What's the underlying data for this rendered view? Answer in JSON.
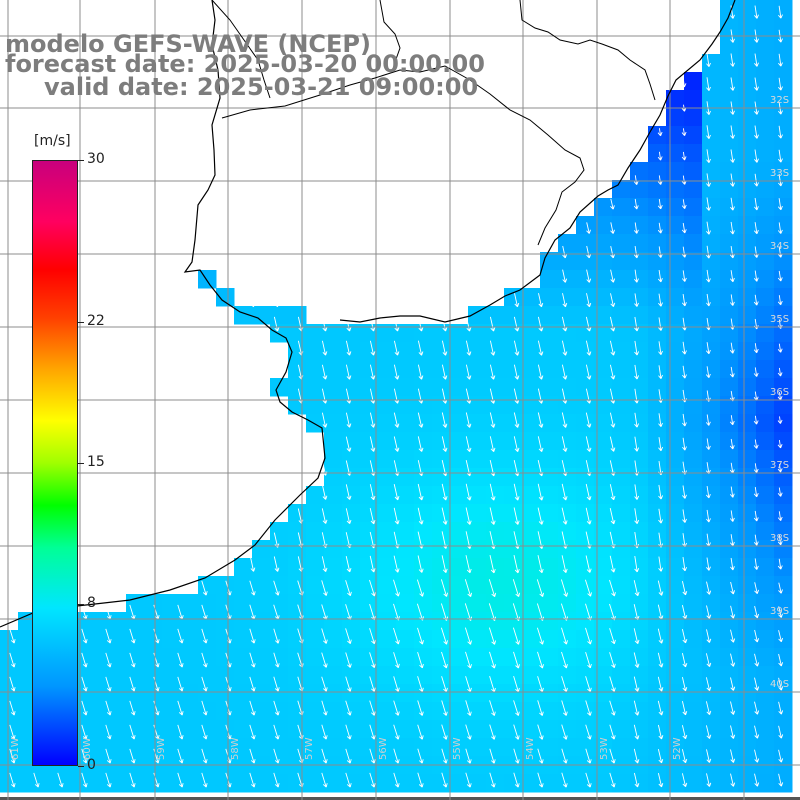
{
  "title": {
    "line1": "modelo GEFS-WAVE (NCEP)",
    "line2": "forecast date: 2025-03-20 00:00:00",
    "line3": "valid date: 2025-03-21 09:00:00"
  },
  "colorbar": {
    "unit": "[m/s]",
    "ticks": [
      {
        "value": 30,
        "label": "30"
      },
      {
        "value": 22,
        "label": "22"
      },
      {
        "value": 15,
        "label": "15"
      },
      {
        "value": 8,
        "label": "8"
      },
      {
        "value": 0,
        "label": "0"
      }
    ],
    "min": 0,
    "max": 30
  },
  "lat_labels": [
    "32S",
    "33S",
    "34S",
    "35S",
    "36S",
    "37S",
    "38S",
    "39S",
    "40S"
  ],
  "lon_labels": [
    "61W",
    "60W",
    "59W",
    "58W",
    "57W",
    "56W",
    "55W",
    "54W",
    "53W",
    "52W"
  ],
  "colors": {
    "land": "#ffffff",
    "coast": "#000000",
    "grid": "#8c8c8c",
    "arrow": "#ffffff",
    "text": "#7d7d7d"
  },
  "field": {
    "speed_range_ms": [
      1,
      9
    ],
    "direction": "north-northeast to south-southwest"
  }
}
